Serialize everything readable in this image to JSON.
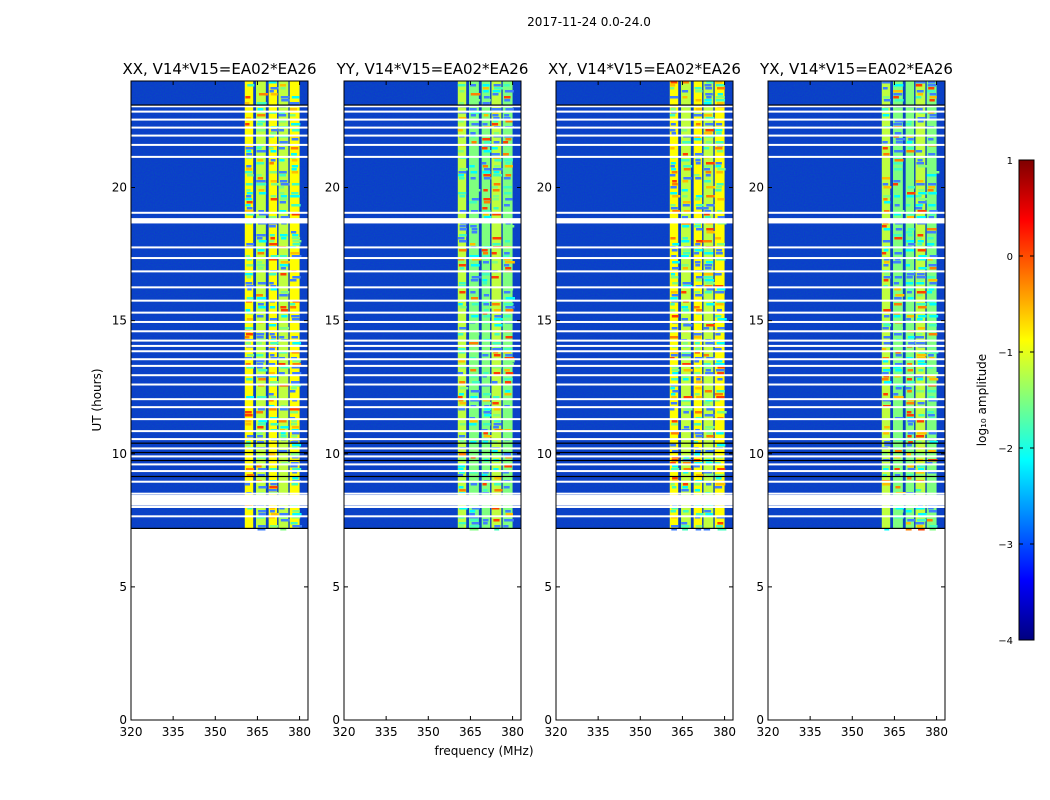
{
  "chart_data": {
    "type": "heatmap",
    "title": "2017-11-24 0.0-24.0",
    "xlabel": "frequency (MHz)",
    "ylabel": "UT (hours)",
    "xlim": [
      320,
      383
    ],
    "ylim": [
      0,
      24
    ],
    "xticks": [
      "320",
      "335",
      "350",
      "365",
      "380"
    ],
    "xtick_values": [
      320,
      335,
      350,
      365,
      380
    ],
    "yticks": [
      "0",
      "5",
      "10",
      "15",
      "20"
    ],
    "ytick_values": [
      0,
      5,
      10,
      15,
      20
    ],
    "data_time_range": [
      7.2,
      24.0
    ],
    "rfi_bands_mhz": [
      [
        360.5,
        363.5
      ],
      [
        364.5,
        368.0
      ],
      [
        369.0,
        372.0
      ],
      [
        372.5,
        376.0
      ],
      [
        376.5,
        380.0
      ]
    ],
    "flagged_times_h": [
      7.65,
      8.0,
      8.3,
      8.5,
      8.95,
      9.35,
      9.6,
      9.9,
      10.2,
      10.55,
      10.85,
      11.3,
      11.75,
      12.05,
      12.6,
      12.95,
      13.3,
      13.55,
      13.85,
      14.05,
      14.25,
      14.6,
      14.95,
      15.3,
      15.75,
      16.25,
      16.85,
      17.35,
      17.75,
      18.75,
      19.05,
      21.15,
      21.6,
      21.95,
      22.25,
      22.55,
      22.85,
      23.05
    ],
    "panels": [
      {
        "title": "XX, V14*V15=EA02*EA26"
      },
      {
        "title": "YY, V14*V15=EA02*EA26"
      },
      {
        "title": "XY, V14*V15=EA02*EA26"
      },
      {
        "title": "YX, V14*V15=EA02*EA26"
      }
    ],
    "colorbar": {
      "label": "log₁₀ amplitude",
      "range": [
        -4,
        1
      ],
      "ticks": [
        "1",
        "0",
        "−1",
        "−2",
        "−3",
        "−4"
      ],
      "tick_values": [
        1,
        0,
        -1,
        -2,
        -3,
        -4
      ],
      "colormap": [
        "#00007f",
        "#0000ff",
        "#007fff",
        "#00ffff",
        "#7fff7f",
        "#ffff00",
        "#ff7f00",
        "#ff0000",
        "#7f0000"
      ]
    }
  }
}
